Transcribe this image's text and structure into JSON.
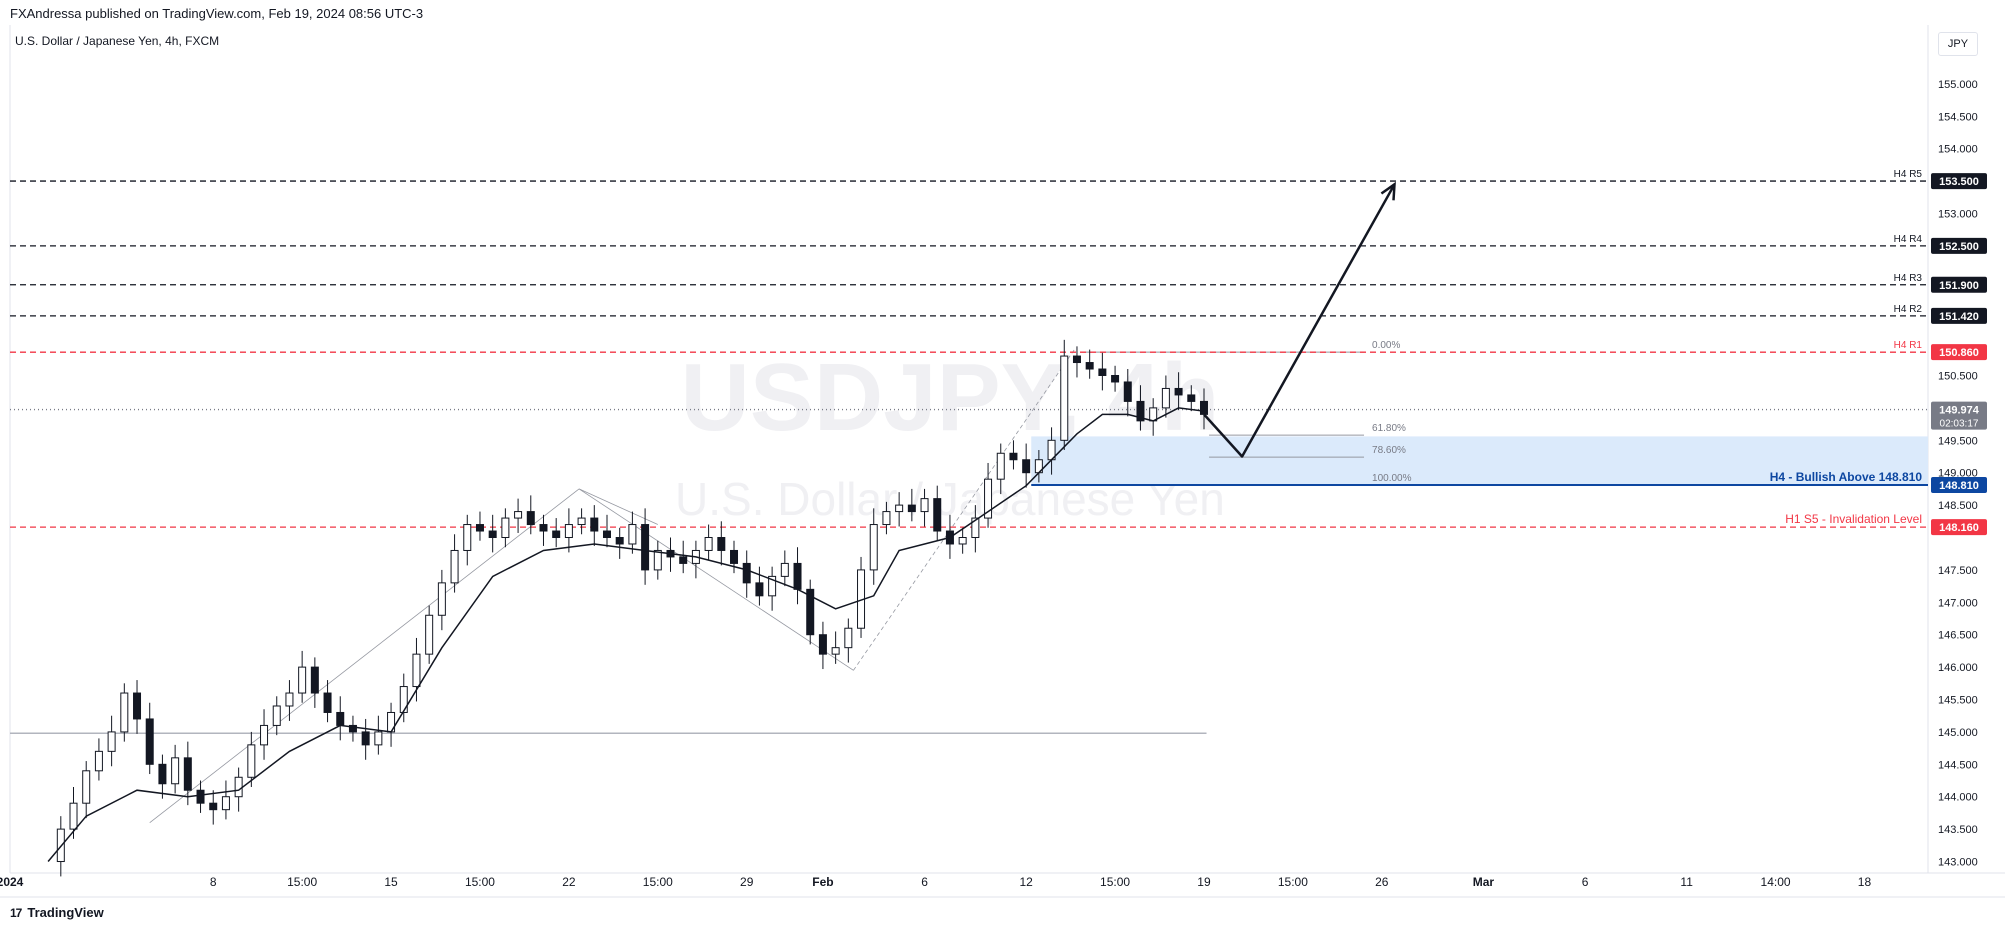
{
  "header": {
    "published_by": "FXAndressa published on TradingView.com, Feb 19, 2024 08:56 UTC-3",
    "symbol_title": "U.S. Dollar / Japanese Yen, 4h, FXCM",
    "currency_button": "JPY"
  },
  "watermark": {
    "symbol": "USDJPY, 4h",
    "description": "U.S. Dollar / Japanese Yen"
  },
  "footer": {
    "logo_text": "TradingView",
    "logo_mark": "17"
  },
  "chart_data": {
    "type": "candlestick",
    "title": "U.S. Dollar / Japanese Yen, 4h, FXCM",
    "ylim": [
      142.9,
      155.6
    ],
    "y_ticks": [
      "143.000",
      "143.500",
      "144.000",
      "144.500",
      "145.000",
      "145.500",
      "146.000",
      "146.500",
      "147.000",
      "147.500",
      "148.000",
      "148.500",
      "149.000",
      "149.500",
      "150.000",
      "150.500",
      "151.000",
      "151.500",
      "152.000",
      "152.500",
      "153.000",
      "153.500",
      "154.000",
      "154.500",
      "155.000"
    ],
    "x_tick_labels": [
      "2024",
      "8",
      "15:00",
      "15",
      "15:00",
      "22",
      "15:00",
      "29",
      "Feb",
      "6",
      "12",
      "15:00",
      "19",
      "15:00",
      "26",
      "Mar",
      "6",
      "11",
      "14:00",
      "18"
    ],
    "x_tick_values": [
      0,
      8,
      11.5,
      15,
      18.5,
      22,
      25.5,
      29,
      32,
      36,
      40,
      43.5,
      47,
      50.5,
      54,
      58,
      62,
      66,
      69.5,
      73
    ],
    "bold_x_ticks": [
      "2024",
      "Feb",
      "Mar"
    ],
    "price_series_close": [
      [
        1.5,
        143.0
      ],
      [
        2,
        143.5
      ],
      [
        2.5,
        143.9
      ],
      [
        3,
        144.4
      ],
      [
        3.5,
        144.7
      ],
      [
        4,
        145.0
      ],
      [
        4.5,
        145.6
      ],
      [
        5,
        145.2
      ],
      [
        5.5,
        144.5
      ],
      [
        6,
        144.2
      ],
      [
        6.5,
        144.6
      ],
      [
        7,
        144.1
      ],
      [
        7.5,
        143.9
      ],
      [
        8,
        143.8
      ],
      [
        8.5,
        144.0
      ],
      [
        9,
        144.3
      ],
      [
        9.5,
        144.8
      ],
      [
        10,
        145.1
      ],
      [
        10.5,
        145.4
      ],
      [
        11,
        145.6
      ],
      [
        11.5,
        146.0
      ],
      [
        12,
        145.6
      ],
      [
        12.5,
        145.3
      ],
      [
        13,
        145.1
      ],
      [
        13.5,
        145.0
      ],
      [
        14,
        144.8
      ],
      [
        14.5,
        145.0
      ],
      [
        15,
        145.3
      ],
      [
        15.5,
        145.7
      ],
      [
        16,
        146.2
      ],
      [
        16.5,
        146.8
      ],
      [
        17,
        147.3
      ],
      [
        17.5,
        147.8
      ],
      [
        18,
        148.2
      ],
      [
        18.5,
        148.1
      ],
      [
        19,
        148.0
      ],
      [
        19.5,
        148.3
      ],
      [
        20,
        148.4
      ],
      [
        20.5,
        148.2
      ],
      [
        21,
        148.1
      ],
      [
        21.5,
        148.0
      ],
      [
        22,
        148.2
      ],
      [
        22.5,
        148.3
      ],
      [
        23,
        148.1
      ],
      [
        23.5,
        148.0
      ],
      [
        24,
        147.9
      ],
      [
        24.5,
        148.2
      ],
      [
        25,
        147.5
      ],
      [
        25.5,
        147.8
      ],
      [
        26,
        147.7
      ],
      [
        26.5,
        147.6
      ],
      [
        27,
        147.8
      ],
      [
        27.5,
        148.0
      ],
      [
        28,
        147.8
      ],
      [
        28.5,
        147.6
      ],
      [
        29,
        147.3
      ],
      [
        29.5,
        147.1
      ],
      [
        30,
        147.4
      ],
      [
        30.5,
        147.6
      ],
      [
        31,
        147.2
      ],
      [
        31.5,
        146.5
      ],
      [
        32,
        146.2
      ],
      [
        32.5,
        146.3
      ],
      [
        33,
        146.6
      ],
      [
        33.5,
        147.5
      ],
      [
        34,
        148.2
      ],
      [
        34.5,
        148.4
      ],
      [
        35,
        148.5
      ],
      [
        35.5,
        148.4
      ],
      [
        36,
        148.6
      ],
      [
        36.5,
        148.1
      ],
      [
        37,
        147.9
      ],
      [
        37.5,
        148.0
      ],
      [
        38,
        148.3
      ],
      [
        38.5,
        148.9
      ],
      [
        39,
        149.3
      ],
      [
        39.5,
        149.2
      ],
      [
        40,
        149.0
      ],
      [
        40.5,
        149.2
      ],
      [
        41,
        149.5
      ],
      [
        41.5,
        150.8
      ],
      [
        42,
        150.7
      ],
      [
        42.5,
        150.6
      ],
      [
        43,
        150.5
      ],
      [
        43.5,
        150.4
      ],
      [
        44,
        150.1
      ],
      [
        44.5,
        149.8
      ],
      [
        45,
        150.0
      ],
      [
        45.5,
        150.3
      ],
      [
        46,
        150.2
      ],
      [
        46.5,
        150.1
      ],
      [
        47,
        149.9
      ]
    ],
    "ema_series": [
      [
        1.5,
        143.0
      ],
      [
        3,
        143.7
      ],
      [
        5,
        144.1
      ],
      [
        7,
        144.0
      ],
      [
        9,
        144.1
      ],
      [
        11,
        144.7
      ],
      [
        13,
        145.1
      ],
      [
        15,
        145.0
      ],
      [
        17,
        146.3
      ],
      [
        19,
        147.4
      ],
      [
        21,
        147.8
      ],
      [
        23,
        147.9
      ],
      [
        25,
        147.8
      ],
      [
        27,
        147.7
      ],
      [
        29,
        147.5
      ],
      [
        31,
        147.2
      ],
      [
        32.5,
        146.9
      ],
      [
        34,
        147.1
      ],
      [
        35,
        147.8
      ],
      [
        37,
        148.0
      ],
      [
        38.5,
        148.4
      ],
      [
        40,
        148.8
      ],
      [
        41,
        149.2
      ],
      [
        42,
        149.6
      ],
      [
        43,
        149.9
      ],
      [
        44,
        149.9
      ],
      [
        45,
        149.8
      ],
      [
        46,
        150.0
      ],
      [
        47,
        149.95
      ]
    ],
    "levels": [
      {
        "name": "H4 R5",
        "price": 153.5,
        "label": "153.500",
        "color": "#131722",
        "style": "dashed",
        "tag": "H4 R5"
      },
      {
        "name": "H4 R4",
        "price": 152.5,
        "label": "152.500",
        "color": "#131722",
        "style": "dashed",
        "tag": "H4 R4"
      },
      {
        "name": "H4 R3",
        "price": 151.9,
        "label": "151.900",
        "color": "#131722",
        "style": "dashed",
        "tag": "H4 R3"
      },
      {
        "name": "H4 R2",
        "price": 151.42,
        "label": "151.420",
        "color": "#131722",
        "style": "dashed",
        "tag": "H4 R2"
      },
      {
        "name": "H4 R1",
        "price": 150.86,
        "label": "150.860",
        "color": "#f23645",
        "style": "dashed",
        "tag": "H4 R1"
      },
      {
        "name": "current",
        "price": 149.974,
        "label": "149.974",
        "sublabel": "02:03:17",
        "color": "#787b86",
        "style": "dotted",
        "tag": ""
      },
      {
        "name": "H4 - Bullish Above 148.810",
        "price": 148.81,
        "label": "148.810",
        "color": "#0d47a1",
        "style": "solid",
        "tag": "H4 - Bullish Above 148.810"
      },
      {
        "name": "H1 S5 - Invalidation Level",
        "price": 148.16,
        "label": "148.160",
        "color": "#f23645",
        "style": "dashed",
        "tag": "H1 S5 - Invalidation Level"
      }
    ],
    "fib_levels": [
      {
        "label": "0.00%",
        "price": 150.86
      },
      {
        "label": "61.80%",
        "price": 149.58
      },
      {
        "label": "78.60%",
        "price": 149.24
      },
      {
        "label": "100.00%",
        "price": 148.81
      }
    ],
    "zone": {
      "from_price": 148.81,
      "to_price": 149.56,
      "color": "#bbdefb"
    },
    "support_line_price": 144.98,
    "projection": [
      [
        47,
        149.9
      ],
      [
        48.5,
        149.25
      ],
      [
        54.5,
        153.45
      ]
    ],
    "colors": {
      "candle": "#131722",
      "ema": "#131722",
      "zone": "#dbeafb",
      "accent_blue": "#0d47a1",
      "accent_red": "#f23645"
    }
  }
}
